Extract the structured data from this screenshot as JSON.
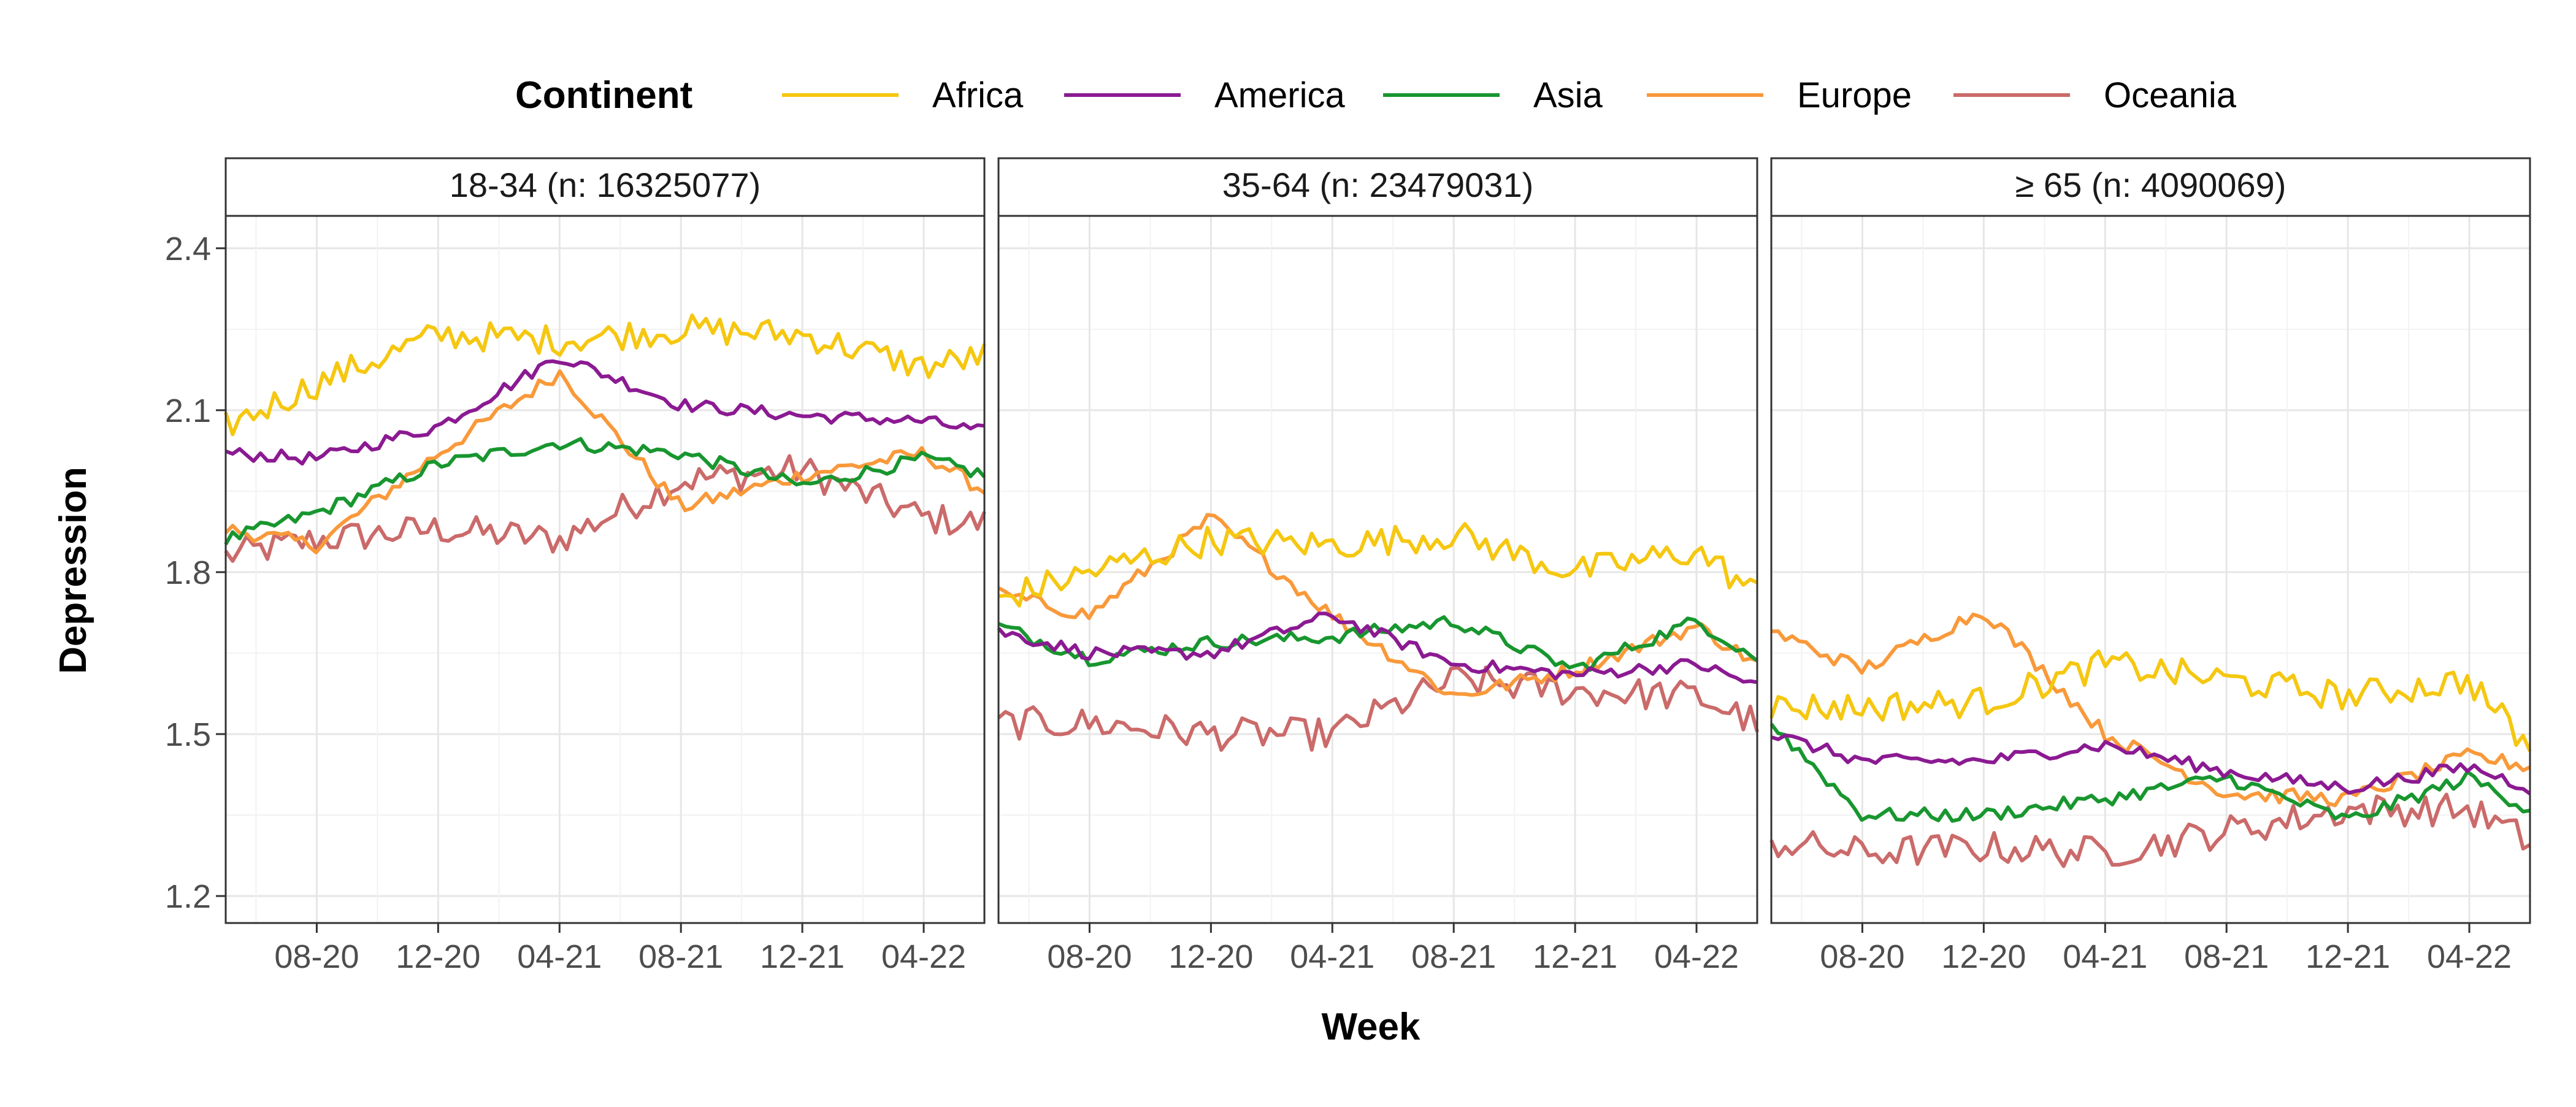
{
  "legend": {
    "title": "Continent",
    "placement": "top"
  },
  "chart_data": {
    "type": "line",
    "ylabel": "Depression",
    "xlabel": "Week",
    "ylim": [
      1.15,
      2.46
    ],
    "yticks": [
      1.2,
      1.5,
      1.8,
      2.1,
      2.4
    ],
    "x_start": "2020-05",
    "x_end": "2022-06",
    "xticks": [
      "08-20",
      "12-20",
      "04-21",
      "08-21",
      "12-21",
      "04-22"
    ],
    "grid": true,
    "series_colors": {
      "Africa": "#F5C710",
      "America": "#8B1A92",
      "Asia": "#18962F",
      "Europe": "#F9993A",
      "Oceania": "#CB6A6A"
    },
    "panels": [
      {
        "label": "18-34 (n: 16325077)",
        "x": [
          "2020-05",
          "2020-08",
          "2020-12",
          "2021-04",
          "2021-08",
          "2021-12",
          "2022-04",
          "2022-06"
        ],
        "series": [
          {
            "name": "Africa",
            "values": [
              2.07,
              2.15,
              2.24,
              2.23,
              2.25,
              2.24,
              2.18,
              2.2
            ]
          },
          {
            "name": "America",
            "values": [
              2.02,
              2.01,
              2.07,
              2.2,
              2.11,
              2.09,
              2.08,
              2.06
            ]
          },
          {
            "name": "Asia",
            "values": [
              1.86,
              1.91,
              2.0,
              2.04,
              2.02,
              1.96,
              2.01,
              1.98
            ]
          },
          {
            "name": "Europe",
            "values": [
              1.88,
              1.85,
              2.02,
              2.17,
              1.92,
              1.98,
              2.02,
              1.95
            ]
          },
          {
            "name": "Oceania",
            "values": [
              1.83,
              1.86,
              1.88,
              1.86,
              1.97,
              1.99,
              1.9,
              1.89
            ]
          }
        ]
      },
      {
        "label": "35-64 (n: 23479031)",
        "x": [
          "2020-05",
          "2020-08",
          "2020-12",
          "2021-04",
          "2021-08",
          "2021-12",
          "2022-04",
          "2022-06"
        ],
        "series": [
          {
            "name": "Africa",
            "values": [
              1.75,
              1.8,
              1.86,
              1.85,
              1.87,
              1.8,
              1.84,
              1.76
            ]
          },
          {
            "name": "America",
            "values": [
              1.69,
              1.65,
              1.65,
              1.72,
              1.63,
              1.61,
              1.63,
              1.59
            ]
          },
          {
            "name": "Asia",
            "values": [
              1.7,
              1.64,
              1.67,
              1.68,
              1.71,
              1.62,
              1.71,
              1.64
            ]
          },
          {
            "name": "Europe",
            "values": [
              1.76,
              1.72,
              1.9,
              1.72,
              1.57,
              1.62,
              1.7,
              1.63
            ]
          },
          {
            "name": "Oceania",
            "values": [
              1.52,
              1.52,
              1.5,
              1.5,
              1.6,
              1.58,
              1.57,
              1.52
            ]
          }
        ]
      },
      {
        "label": "≥ 65 (n: 4090069)",
        "x": [
          "2020-05",
          "2020-08",
          "2020-12",
          "2021-04",
          "2021-08",
          "2021-12",
          "2022-04",
          "2022-06"
        ],
        "series": [
          {
            "name": "Africa",
            "values": [
              1.55,
              1.55,
              1.56,
              1.63,
              1.6,
              1.57,
              1.6,
              1.47
            ]
          },
          {
            "name": "America",
            "values": [
              1.5,
              1.45,
              1.45,
              1.48,
              1.43,
              1.4,
              1.44,
              1.4
            ]
          },
          {
            "name": "Asia",
            "values": [
              1.52,
              1.35,
              1.35,
              1.38,
              1.42,
              1.34,
              1.42,
              1.36
            ]
          },
          {
            "name": "Europe",
            "values": [
              1.69,
              1.62,
              1.73,
              1.5,
              1.39,
              1.38,
              1.46,
              1.44
            ]
          },
          {
            "name": "Oceania",
            "values": [
              1.3,
              1.28,
              1.29,
              1.28,
              1.32,
              1.36,
              1.36,
              1.3
            ]
          }
        ]
      }
    ]
  }
}
